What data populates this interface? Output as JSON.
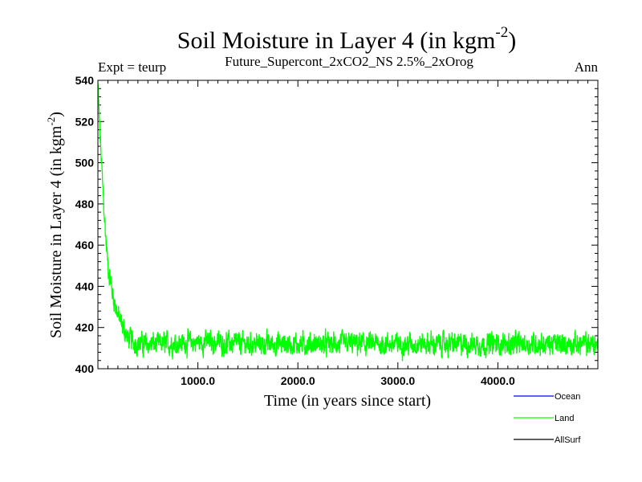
{
  "chart_data": {
    "type": "line",
    "title": "Soil Moisture in Layer 4 (in kgm",
    "title_sup": "-2",
    "title_close": ")",
    "subtitle": "Future_Supercont_2xCO2_NS 2.5%_2xOrog",
    "left_note": "Expt = teurp",
    "right_note": "Ann",
    "xlabel": "Time (in years since start)",
    "ylabel": "Soil Moisture in Layer 4 (in kgm",
    "ylabel_sup": "-2",
    "ylabel_close": ")",
    "xlim": [
      0,
      5000
    ],
    "ylim": [
      400,
      540
    ],
    "x_ticks": [
      1000,
      2000,
      3000,
      4000
    ],
    "x_tick_labels": [
      "1000.0",
      "2000.0",
      "3000.0",
      "4000.0"
    ],
    "y_ticks": [
      400,
      420,
      440,
      460,
      480,
      500,
      520,
      540
    ],
    "y_tick_labels": [
      "400",
      "420",
      "440",
      "460",
      "480",
      "500",
      "520",
      "540"
    ],
    "legend_position": "bottom-right",
    "series": [
      {
        "name": "Ocean",
        "color": "#0000ff",
        "x": [],
        "y": []
      },
      {
        "name": "Land",
        "color": "#00ff00",
        "x": [
          0,
          20,
          40,
          60,
          80,
          100,
          150,
          200,
          250,
          300,
          400,
          500,
          700,
          1000,
          1500,
          2000,
          2500,
          3000,
          3500,
          4000,
          4500,
          5000
        ],
        "y": [
          537,
          515,
          496,
          478,
          463,
          450,
          436,
          426,
          420,
          415,
          412,
          412,
          412,
          413,
          412,
          412,
          412,
          412,
          412,
          412,
          412,
          412
        ],
        "noise_amplitude": 5
      },
      {
        "name": "AllSurf",
        "color": "#000000",
        "x": [],
        "y": []
      }
    ]
  }
}
